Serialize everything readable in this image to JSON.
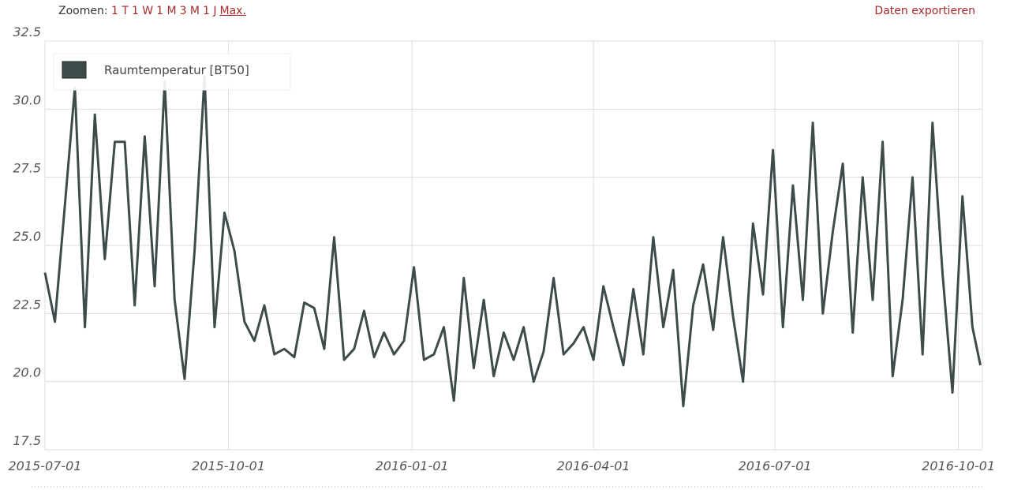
{
  "header": {
    "zoom_label": "Zoomen:",
    "zoom_options": [
      "1 T",
      "1 W",
      "1 M",
      "3 M",
      "1 J",
      "Max."
    ],
    "export": "Daten exportieren"
  },
  "chart_data": {
    "type": "line",
    "x": [
      "2015-07-01",
      "2015-07-06",
      "2015-07-11",
      "2015-07-16",
      "2015-07-21",
      "2015-07-26",
      "2015-07-31",
      "2015-08-05",
      "2015-08-10",
      "2015-08-15",
      "2015-08-20",
      "2015-08-25",
      "2015-08-30",
      "2015-09-04",
      "2015-09-09",
      "2015-09-14",
      "2015-09-19",
      "2015-09-24",
      "2015-09-29",
      "2015-10-04",
      "2015-10-09",
      "2015-10-14",
      "2015-10-19",
      "2015-10-24",
      "2015-10-29",
      "2015-11-03",
      "2015-11-08",
      "2015-11-13",
      "2015-11-18",
      "2015-11-23",
      "2015-11-28",
      "2015-12-03",
      "2015-12-08",
      "2015-12-13",
      "2015-12-18",
      "2015-12-23",
      "2015-12-28",
      "2016-01-02",
      "2016-01-07",
      "2016-01-12",
      "2016-01-17",
      "2016-01-22",
      "2016-01-27",
      "2016-02-01",
      "2016-02-06",
      "2016-02-11",
      "2016-02-16",
      "2016-02-21",
      "2016-02-26",
      "2016-03-02",
      "2016-03-07",
      "2016-03-12",
      "2016-03-17",
      "2016-03-22",
      "2016-03-27",
      "2016-04-01",
      "2016-04-06",
      "2016-04-11",
      "2016-04-16",
      "2016-04-21",
      "2016-04-26",
      "2016-05-01",
      "2016-05-06",
      "2016-05-11",
      "2016-05-16",
      "2016-05-21",
      "2016-05-26",
      "2016-05-31",
      "2016-06-05",
      "2016-06-10",
      "2016-06-15",
      "2016-06-20",
      "2016-06-25",
      "2016-06-30",
      "2016-07-05",
      "2016-07-10",
      "2016-07-15",
      "2016-07-20",
      "2016-07-25",
      "2016-07-30",
      "2016-08-04",
      "2016-08-09",
      "2016-08-14",
      "2016-08-19",
      "2016-08-24",
      "2016-08-29",
      "2016-09-03",
      "2016-09-08",
      "2016-09-13",
      "2016-09-18",
      "2016-09-23",
      "2016-09-28",
      "2016-10-03",
      "2016-10-08",
      "2016-10-12"
    ],
    "series": [
      {
        "name": "Raumtemperatur [BT50]",
        "color": "#3d4c4a",
        "values": [
          24.0,
          22.2,
          26.5,
          30.8,
          22.0,
          29.8,
          24.5,
          28.8,
          28.8,
          22.8,
          29.0,
          23.5,
          31.0,
          23.0,
          20.1,
          24.8,
          31.2,
          22.0,
          26.2,
          24.8,
          22.2,
          21.5,
          22.8,
          21.0,
          21.2,
          20.9,
          22.9,
          22.7,
          21.2,
          25.3,
          20.8,
          21.2,
          22.6,
          20.9,
          21.8,
          21.0,
          21.5,
          24.2,
          20.8,
          21.0,
          22.0,
          19.3,
          23.8,
          20.5,
          23.0,
          20.2,
          21.8,
          20.8,
          22.0,
          20.0,
          21.1,
          23.8,
          21.0,
          21.4,
          22.0,
          20.8,
          23.5,
          22.0,
          20.6,
          23.4,
          21.0,
          25.3,
          22.0,
          24.1,
          19.1,
          22.8,
          24.3,
          21.9,
          25.3,
          22.4,
          20.0,
          25.8,
          23.2,
          28.5,
          22.0,
          27.2,
          23.0,
          29.5,
          22.5,
          25.5,
          28.0,
          21.8,
          27.5,
          23.0,
          28.8,
          20.2,
          23.0,
          27.5,
          21.0,
          29.5,
          24.0,
          19.6,
          26.8,
          22.0,
          20.6
        ]
      }
    ],
    "xlim": [
      "2015-07-01",
      "2016-10-13"
    ],
    "xticks": [
      "2015-07-01",
      "2015-10-01",
      "2016-01-01",
      "2016-04-01",
      "2016-07-01",
      "2016-10-01"
    ],
    "ylim": [
      17.5,
      32.5
    ],
    "yticks": [
      17.5,
      {
        "value": 20,
        "label": "20.0"
      },
      22.5,
      {
        "value": 25,
        "label": "25.0"
      },
      27.5,
      {
        "value": 30,
        "label": "30.0"
      },
      32.5
    ],
    "grid": true,
    "legend": "upper left"
  }
}
